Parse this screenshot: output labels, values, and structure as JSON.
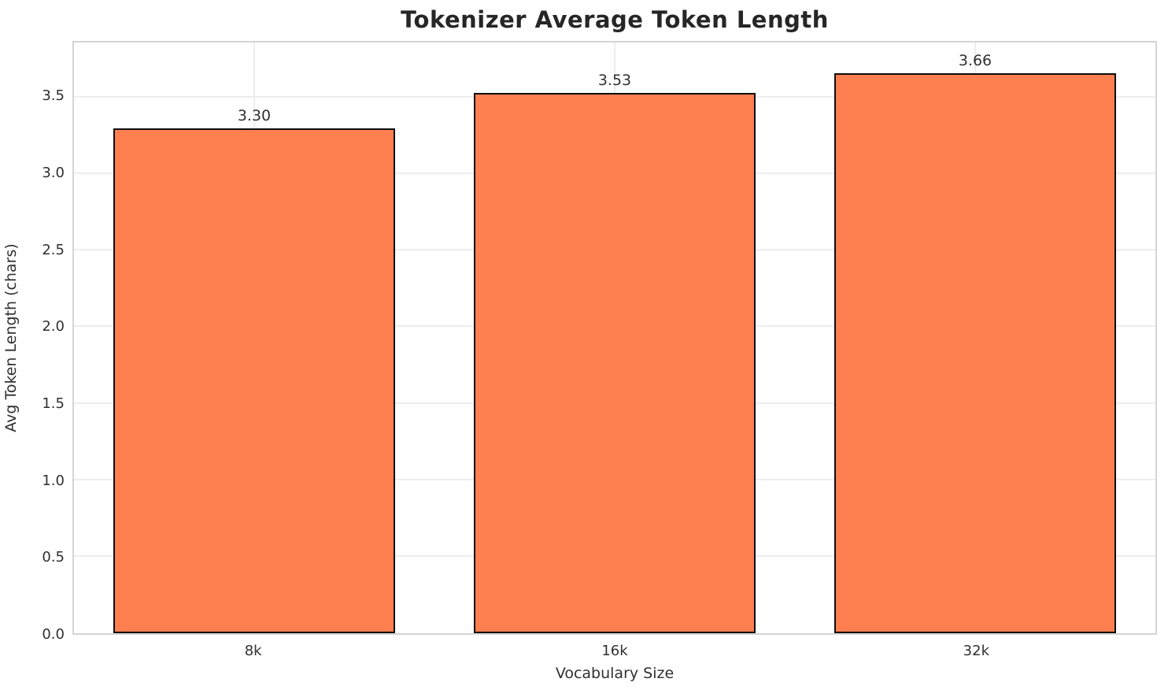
{
  "chart_data": {
    "type": "bar",
    "title": "Tokenizer Average Token Length",
    "xlabel": "Vocabulary Size",
    "ylabel": "Avg Token Length (chars)",
    "categories": [
      "8k",
      "16k",
      "32k"
    ],
    "values": [
      3.3,
      3.53,
      3.66
    ],
    "value_labels": [
      "3.30",
      "3.53",
      "3.66"
    ],
    "ylim": [
      0,
      3.86
    ],
    "ytick_values": [
      0,
      0.5,
      1.0,
      1.5,
      2.0,
      2.5,
      3.0,
      3.5
    ],
    "ytick_labels": [
      "0.0",
      "0.5",
      "1.0",
      "1.5",
      "2.0",
      "2.5",
      "3.0",
      "3.5"
    ],
    "grid": true,
    "legend_position": "none",
    "bar_width_frac": 0.78,
    "colors": {
      "bar_fill": "#ff7f50",
      "bar_edge": "#0d0d0d",
      "grid": "#ededed",
      "spine": "#d4d4d4",
      "text": "#303030",
      "title": "#262626",
      "background": "#ffffff"
    }
  }
}
